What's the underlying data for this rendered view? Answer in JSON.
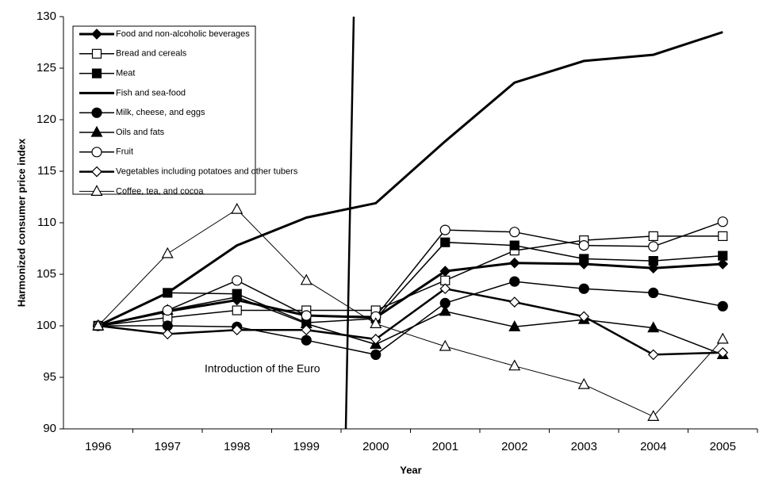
{
  "chart_data": {
    "type": "line",
    "x_label": "Year",
    "y_label": "Harmonized consumer price index",
    "categories": [
      "1996",
      "1997",
      "1998",
      "1999",
      "2000",
      "2001",
      "2002",
      "2003",
      "2004",
      "2005"
    ],
    "ylim": [
      90,
      130
    ],
    "yticks": [
      90,
      95,
      100,
      105,
      110,
      115,
      120,
      125,
      130
    ],
    "annotation": "Introduction of the Euro",
    "legend": "upper left",
    "series": [
      {
        "name": "Food and non-alcoholic beverages",
        "color": "#000000",
        "marker": "diamond",
        "filled": true,
        "width": 3,
        "values": [
          100,
          101.4,
          102.5,
          101,
          100.8,
          105.3,
          106.1,
          106,
          105.6,
          106
        ]
      },
      {
        "name": "Bread and cereals",
        "color": "#000000",
        "marker": "square",
        "filled": false,
        "width": 1.5,
        "values": [
          100,
          100.8,
          101.5,
          101.5,
          101.5,
          104.4,
          107.3,
          108.3,
          108.7,
          108.7
        ]
      },
      {
        "name": "Meat",
        "color": "#000000",
        "marker": "square",
        "filled": true,
        "width": 1.5,
        "values": [
          100,
          103.2,
          103.1,
          100.3,
          100.7,
          108.1,
          107.8,
          106.5,
          106.3,
          106.8
        ]
      },
      {
        "name": "Fish and sea-food",
        "color": "#000000",
        "marker": "none",
        "filled": true,
        "width": 3,
        "values": [
          100,
          103.2,
          107.8,
          110.5,
          111.9,
          117.9,
          123.6,
          125.7,
          126.3,
          128.5
        ]
      },
      {
        "name": "Milk, cheese, and eggs",
        "color": "#000000",
        "marker": "circle",
        "filled": true,
        "width": 1.5,
        "values": [
          100,
          100,
          99.9,
          98.6,
          97.2,
          102.2,
          104.3,
          103.6,
          103.2,
          101.9
        ]
      },
      {
        "name": "Oils and fats",
        "color": "#000000",
        "marker": "triangle",
        "filled": true,
        "width": 1.5,
        "values": [
          100,
          101.5,
          102.8,
          100.2,
          98.2,
          101.4,
          99.9,
          100.6,
          99.8,
          97.2
        ]
      },
      {
        "name": "Fruit",
        "color": "#000000",
        "marker": "circle",
        "filled": false,
        "width": 1.5,
        "values": [
          100,
          101.5,
          104.4,
          101,
          100.9,
          109.3,
          109.1,
          107.8,
          107.7,
          110.1
        ]
      },
      {
        "name": "Vegetables including potatoes and other tubers",
        "color": "#000000",
        "marker": "diamond",
        "filled": false,
        "width": 2.5,
        "values": [
          100,
          99.2,
          99.6,
          99.6,
          98.7,
          103.6,
          102.3,
          100.9,
          97.2,
          97.4
        ]
      },
      {
        "name": "Coffee, tea, and cocoa",
        "color": "#000000",
        "marker": "triangle",
        "filled": false,
        "width": 1,
        "values": [
          100,
          107,
          111.3,
          104.4,
          100.2,
          98,
          96.1,
          94.3,
          91.2,
          98.7
        ]
      }
    ]
  }
}
